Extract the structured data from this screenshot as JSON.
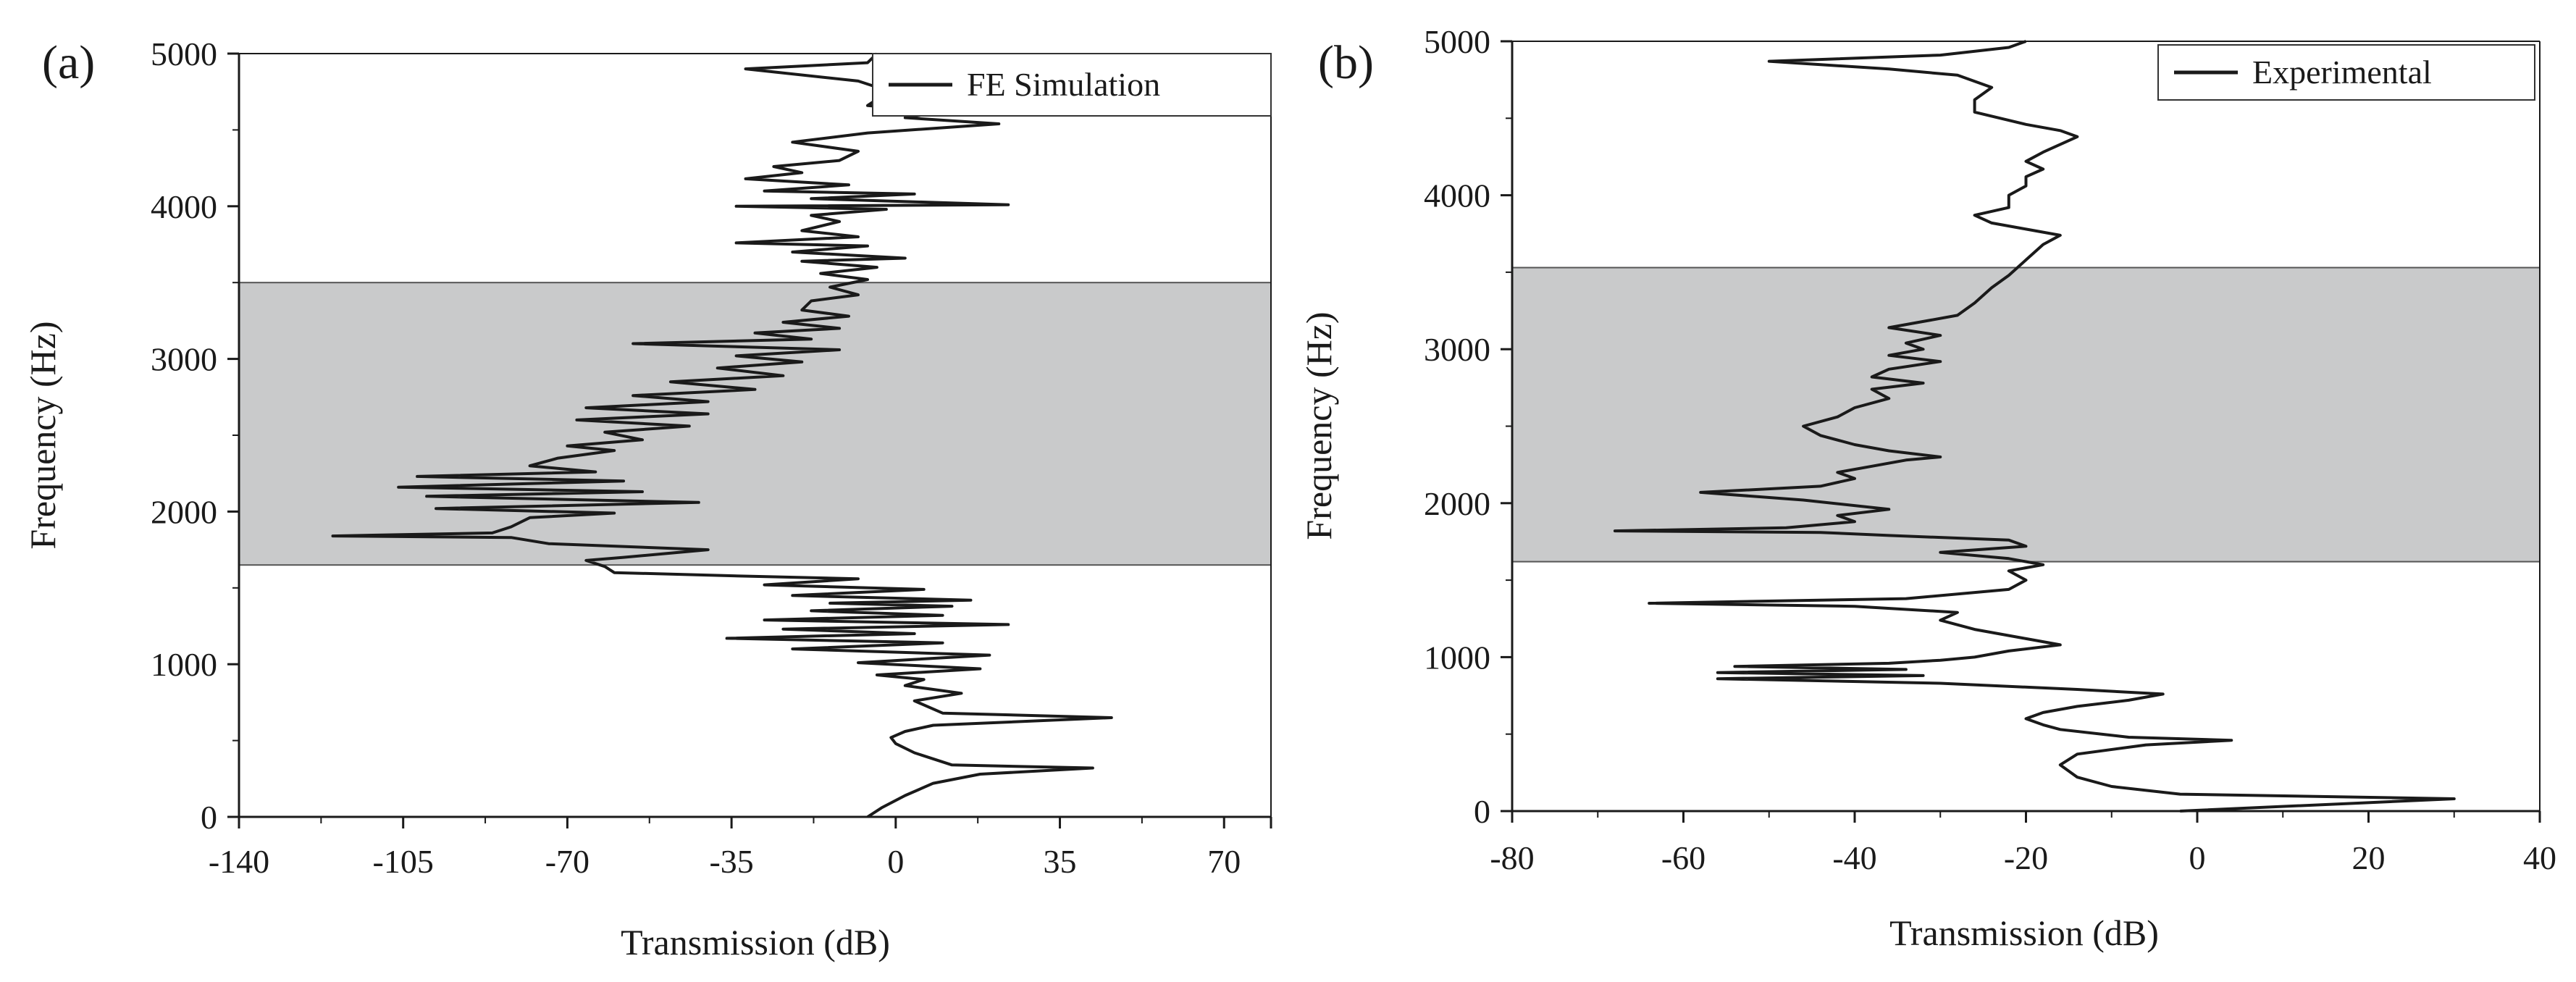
{
  "chart_data": [
    {
      "type": "line",
      "panel_label": "(a)",
      "legend": "FE Simulation",
      "legend_position": "top-right",
      "xlabel": "Transmission (dB)",
      "ylabel": "Frequency (Hz)",
      "xlim": [
        -140,
        80
      ],
      "ylim": [
        0,
        5000
      ],
      "xticks": [
        -140,
        -105,
        -70,
        -35,
        0,
        35,
        70
      ],
      "yticks": [
        0,
        1000,
        2000,
        3000,
        4000,
        5000
      ],
      "shaded_band": {
        "y_from": 1650,
        "y_to": 3500
      },
      "series": [
        {
          "name": "FE Simulation",
          "points": [
            [
              -6,
              0
            ],
            [
              -3,
              60
            ],
            [
              2,
              140
            ],
            [
              8,
              220
            ],
            [
              18,
              280
            ],
            [
              42,
              320
            ],
            [
              12,
              340
            ],
            [
              4,
              420
            ],
            [
              0,
              480
            ],
            [
              -1,
              520
            ],
            [
              2,
              560
            ],
            [
              8,
              600
            ],
            [
              46,
              650
            ],
            [
              10,
              680
            ],
            [
              4,
              760
            ],
            [
              14,
              810
            ],
            [
              2,
              860
            ],
            [
              6,
              900
            ],
            [
              -4,
              930
            ],
            [
              18,
              970
            ],
            [
              -8,
              1010
            ],
            [
              20,
              1060
            ],
            [
              -22,
              1100
            ],
            [
              10,
              1140
            ],
            [
              -36,
              1170
            ],
            [
              4,
              1200
            ],
            [
              -24,
              1230
            ],
            [
              24,
              1260
            ],
            [
              -28,
              1290
            ],
            [
              10,
              1320
            ],
            [
              -18,
              1350
            ],
            [
              12,
              1380
            ],
            [
              -14,
              1400
            ],
            [
              16,
              1420
            ],
            [
              -22,
              1450
            ],
            [
              6,
              1490
            ],
            [
              -28,
              1520
            ],
            [
              -8,
              1560
            ],
            [
              -36,
              1580
            ],
            [
              -60,
              1600
            ],
            [
              -62,
              1640
            ],
            [
              -66,
              1680
            ],
            [
              -58,
              1700
            ],
            [
              -40,
              1750
            ],
            [
              -74,
              1790
            ],
            [
              -82,
              1830
            ],
            [
              -120,
              1840
            ],
            [
              -86,
              1860
            ],
            [
              -82,
              1900
            ],
            [
              -78,
              1960
            ],
            [
              -60,
              1990
            ],
            [
              -98,
              2020
            ],
            [
              -42,
              2060
            ],
            [
              -100,
              2100
            ],
            [
              -54,
              2130
            ],
            [
              -106,
              2160
            ],
            [
              -58,
              2200
            ],
            [
              -102,
              2230
            ],
            [
              -64,
              2260
            ],
            [
              -78,
              2300
            ],
            [
              -72,
              2350
            ],
            [
              -60,
              2400
            ],
            [
              -70,
              2430
            ],
            [
              -54,
              2470
            ],
            [
              -62,
              2520
            ],
            [
              -44,
              2560
            ],
            [
              -68,
              2600
            ],
            [
              -40,
              2640
            ],
            [
              -66,
              2680
            ],
            [
              -40,
              2720
            ],
            [
              -56,
              2760
            ],
            [
              -30,
              2800
            ],
            [
              -48,
              2850
            ],
            [
              -24,
              2890
            ],
            [
              -38,
              2940
            ],
            [
              -20,
              2980
            ],
            [
              -34,
              3020
            ],
            [
              -12,
              3060
            ],
            [
              -56,
              3100
            ],
            [
              -18,
              3130
            ],
            [
              -30,
              3170
            ],
            [
              -12,
              3200
            ],
            [
              -24,
              3240
            ],
            [
              -10,
              3280
            ],
            [
              -20,
              3320
            ],
            [
              -18,
              3380
            ],
            [
              -8,
              3420
            ],
            [
              -14,
              3470
            ],
            [
              -6,
              3520
            ],
            [
              -16,
              3560
            ],
            [
              -4,
              3600
            ],
            [
              -20,
              3640
            ],
            [
              2,
              3660
            ],
            [
              -22,
              3700
            ],
            [
              -6,
              3740
            ],
            [
              -34,
              3760
            ],
            [
              -8,
              3800
            ],
            [
              -20,
              3840
            ],
            [
              -12,
              3900
            ],
            [
              -18,
              3940
            ],
            [
              -2,
              3980
            ],
            [
              -34,
              4000
            ],
            [
              24,
              4010
            ],
            [
              -18,
              4050
            ],
            [
              4,
              4080
            ],
            [
              -28,
              4100
            ],
            [
              -10,
              4140
            ],
            [
              -32,
              4180
            ],
            [
              -20,
              4220
            ],
            [
              -26,
              4260
            ],
            [
              -12,
              4300
            ],
            [
              -8,
              4360
            ],
            [
              -22,
              4420
            ],
            [
              -6,
              4480
            ],
            [
              22,
              4540
            ],
            [
              2,
              4580
            ],
            [
              10,
              4620
            ],
            [
              -6,
              4660
            ],
            [
              -4,
              4700
            ],
            [
              -2,
              4760
            ],
            [
              -8,
              4820
            ],
            [
              -32,
              4900
            ],
            [
              -6,
              4940
            ],
            [
              -4,
              5000
            ]
          ]
        }
      ]
    },
    {
      "type": "line",
      "panel_label": "(b)",
      "legend": "Experimental",
      "legend_position": "top-right",
      "xlabel": "Transmission (dB)",
      "ylabel": "Frequency (Hz)",
      "xlim": [
        -80,
        40
      ],
      "ylim": [
        0,
        5000
      ],
      "xticks": [
        -80,
        -60,
        -40,
        -20,
        0,
        20,
        40
      ],
      "yticks": [
        0,
        1000,
        2000,
        3000,
        4000,
        5000
      ],
      "shaded_band": {
        "y_from": 1620,
        "y_to": 3530
      },
      "series": [
        {
          "name": "Experimental",
          "points": [
            [
              -2,
              0
            ],
            [
              30,
              80
            ],
            [
              -2,
              110
            ],
            [
              -10,
              160
            ],
            [
              -14,
              220
            ],
            [
              -16,
              300
            ],
            [
              -14,
              370
            ],
            [
              -6,
              430
            ],
            [
              4,
              460
            ],
            [
              -8,
              480
            ],
            [
              -16,
              530
            ],
            [
              -18,
              560
            ],
            [
              -20,
              600
            ],
            [
              -18,
              640
            ],
            [
              -14,
              680
            ],
            [
              -8,
              720
            ],
            [
              -4,
              760
            ],
            [
              -14,
              790
            ],
            [
              -30,
              830
            ],
            [
              -56,
              860
            ],
            [
              -32,
              880
            ],
            [
              -56,
              900
            ],
            [
              -34,
              920
            ],
            [
              -54,
              940
            ],
            [
              -36,
              960
            ],
            [
              -30,
              980
            ],
            [
              -26,
              1000
            ],
            [
              -22,
              1040
            ],
            [
              -16,
              1080
            ],
            [
              -20,
              1120
            ],
            [
              -26,
              1180
            ],
            [
              -30,
              1240
            ],
            [
              -28,
              1290
            ],
            [
              -40,
              1330
            ],
            [
              -64,
              1350
            ],
            [
              -34,
              1380
            ],
            [
              -22,
              1440
            ],
            [
              -20,
              1500
            ],
            [
              -22,
              1560
            ],
            [
              -18,
              1600
            ],
            [
              -22,
              1640
            ],
            [
              -30,
              1680
            ],
            [
              -20,
              1720
            ],
            [
              -22,
              1760
            ],
            [
              -36,
              1790
            ],
            [
              -44,
              1810
            ],
            [
              -68,
              1820
            ],
            [
              -48,
              1840
            ],
            [
              -40,
              1880
            ],
            [
              -42,
              1920
            ],
            [
              -36,
              1960
            ],
            [
              -46,
              2020
            ],
            [
              -58,
              2070
            ],
            [
              -44,
              2110
            ],
            [
              -40,
              2160
            ],
            [
              -42,
              2200
            ],
            [
              -38,
              2240
            ],
            [
              -34,
              2280
            ],
            [
              -30,
              2300
            ],
            [
              -36,
              2340
            ],
            [
              -40,
              2380
            ],
            [
              -44,
              2440
            ],
            [
              -46,
              2500
            ],
            [
              -42,
              2560
            ],
            [
              -40,
              2620
            ],
            [
              -36,
              2680
            ],
            [
              -38,
              2740
            ],
            [
              -32,
              2780
            ],
            [
              -38,
              2820
            ],
            [
              -36,
              2870
            ],
            [
              -30,
              2920
            ],
            [
              -36,
              2960
            ],
            [
              -32,
              3000
            ],
            [
              -34,
              3040
            ],
            [
              -30,
              3090
            ],
            [
              -36,
              3140
            ],
            [
              -32,
              3180
            ],
            [
              -28,
              3220
            ],
            [
              -26,
              3300
            ],
            [
              -24,
              3400
            ],
            [
              -22,
              3480
            ],
            [
              -20,
              3580
            ],
            [
              -18,
              3680
            ],
            [
              -16,
              3740
            ],
            [
              -20,
              3780
            ],
            [
              -24,
              3820
            ],
            [
              -26,
              3870
            ],
            [
              -22,
              3920
            ],
            [
              -22,
              4000
            ],
            [
              -20,
              4060
            ],
            [
              -20,
              4120
            ],
            [
              -18,
              4170
            ],
            [
              -20,
              4220
            ],
            [
              -18,
              4280
            ],
            [
              -16,
              4330
            ],
            [
              -14,
              4380
            ],
            [
              -16,
              4420
            ],
            [
              -20,
              4460
            ],
            [
              -26,
              4540
            ],
            [
              -26,
              4620
            ],
            [
              -24,
              4700
            ],
            [
              -28,
              4780
            ],
            [
              -36,
              4820
            ],
            [
              -50,
              4870
            ],
            [
              -30,
              4910
            ],
            [
              -22,
              4960
            ],
            [
              -20,
              5000
            ]
          ]
        }
      ]
    }
  ],
  "colors": {
    "line": "#1a1a1a",
    "band": "#c9cacb",
    "axis": "#1a1a1a"
  }
}
